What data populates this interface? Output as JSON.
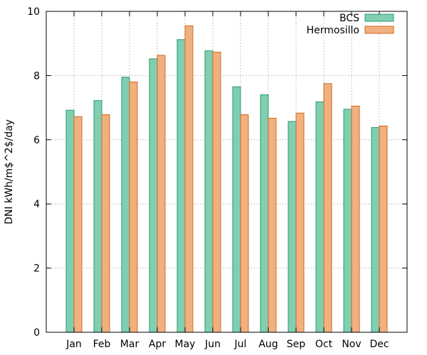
{
  "chart_data": {
    "type": "bar",
    "ylabel": "DNI kWh/m$^2$/day",
    "ylim": [
      0,
      10
    ],
    "yticks": [
      "0",
      "2",
      "4",
      "6",
      "8",
      "10"
    ],
    "categories": [
      "Jan",
      "Feb",
      "Mar",
      "Apr",
      "May",
      "Jun",
      "Jul",
      "Aug",
      "Sep",
      "Oct",
      "Nov",
      "Dec"
    ],
    "series": [
      {
        "name": "BCS",
        "color": "#7fcfb0",
        "edge": "#2a9a72",
        "values": [
          6.92,
          7.22,
          7.95,
          8.52,
          9.12,
          8.77,
          7.65,
          7.4,
          6.57,
          7.18,
          6.95,
          6.38
        ]
      },
      {
        "name": "Hermosillo",
        "color": "#f0b080",
        "edge": "#d06a20",
        "values": [
          6.72,
          6.78,
          7.8,
          8.63,
          9.55,
          8.73,
          6.78,
          6.67,
          6.83,
          7.75,
          7.05,
          6.43
        ]
      }
    ],
    "grid": true,
    "legend_position": "top-right"
  }
}
